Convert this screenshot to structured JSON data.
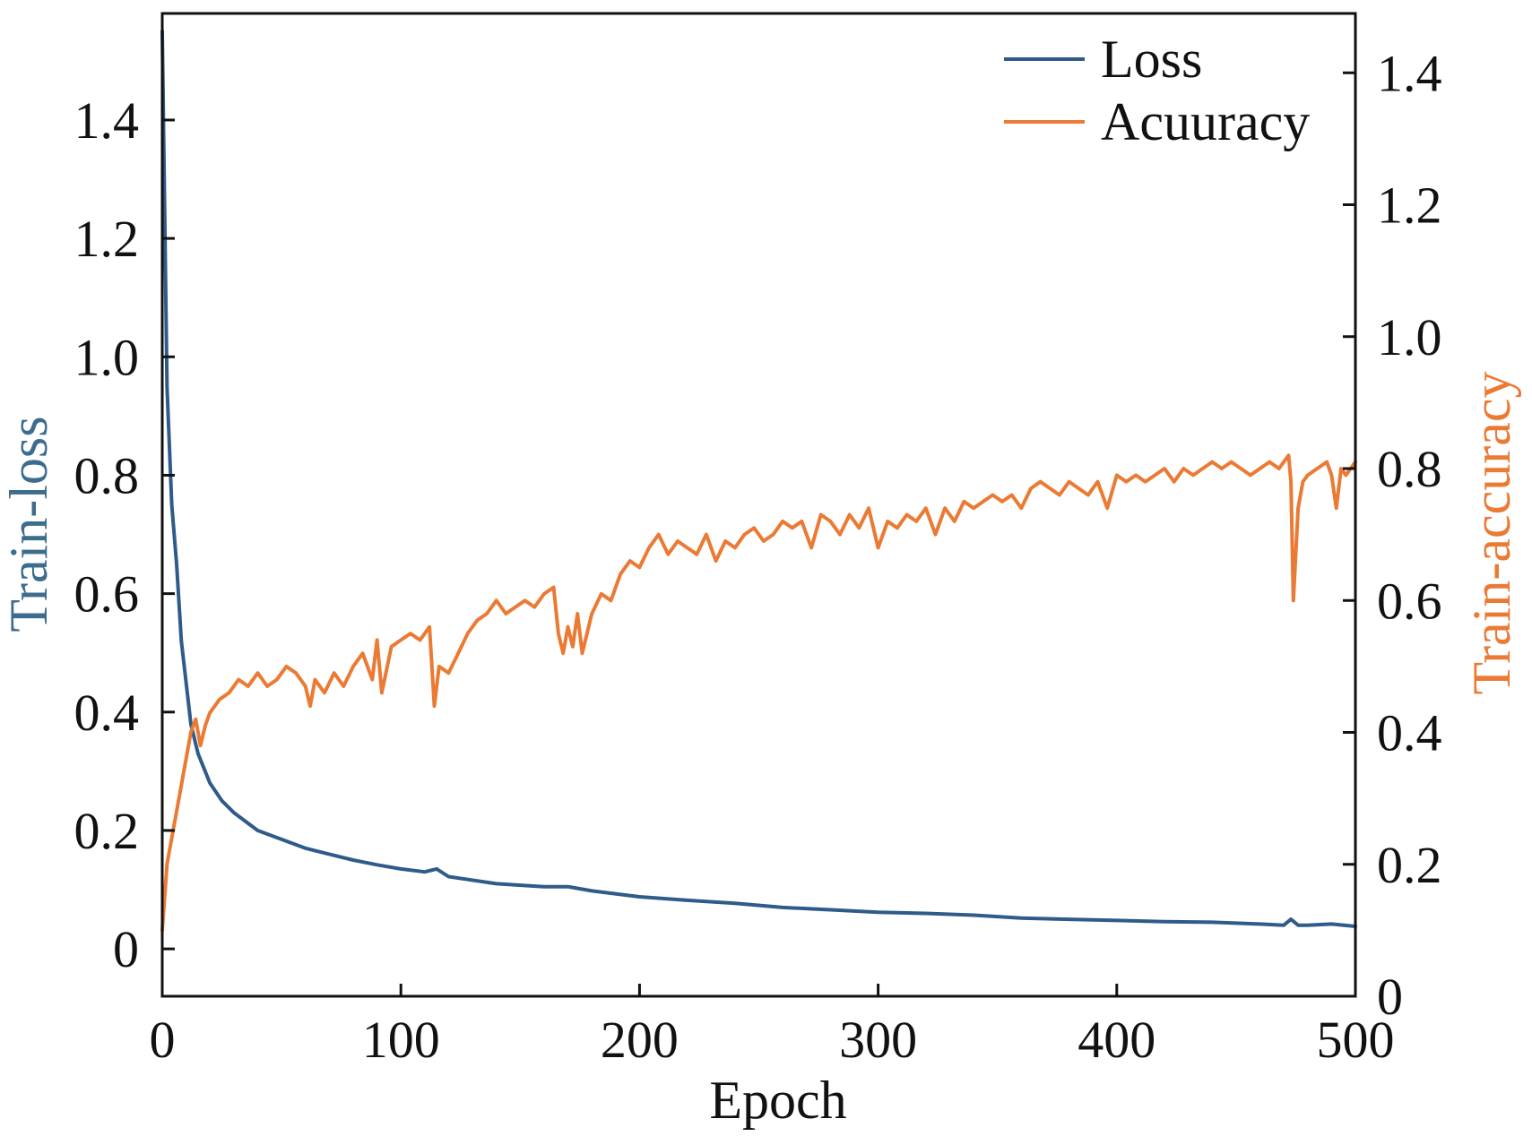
{
  "chart_data": {
    "type": "line",
    "title": "",
    "xlabel": "Epoch",
    "ylabel": "Train-loss",
    "y2label": "Train-accuracy",
    "xlim": [
      0,
      500
    ],
    "ylim": [
      -0.08,
      1.58
    ],
    "y2lim": [
      0,
      1.49
    ],
    "x_ticks": [
      0,
      100,
      200,
      300,
      400,
      500
    ],
    "x_tick_labels": [
      "0",
      "100",
      "200",
      "300",
      "400",
      "500"
    ],
    "y_ticks": [
      0,
      0.2,
      0.4,
      0.6,
      0.8,
      1.0,
      1.2,
      1.4
    ],
    "y_tick_labels": [
      "0",
      "0.2",
      "0.4",
      "0.6",
      "0.8",
      "1.0",
      "1.2",
      "1.4"
    ],
    "y2_ticks": [
      0,
      0.2,
      0.4,
      0.6,
      0.8,
      1.0,
      1.2,
      1.4
    ],
    "y2_tick_labels": [
      "0",
      "0.2",
      "0.4",
      "0.6",
      "0.8",
      "1.0",
      "1.2",
      "1.4"
    ],
    "grid": false,
    "legend_position": "top-right",
    "series": [
      {
        "name": "Loss",
        "axis": "left",
        "color": "#2e5b8a",
        "x": [
          0,
          2,
          4,
          6,
          8,
          10,
          12,
          15,
          20,
          25,
          30,
          40,
          50,
          60,
          70,
          80,
          90,
          100,
          110,
          115,
          120,
          140,
          160,
          170,
          180,
          200,
          220,
          240,
          260,
          280,
          300,
          320,
          340,
          360,
          380,
          400,
          420,
          440,
          460,
          470,
          473,
          476,
          480,
          490,
          500
        ],
        "values": [
          1.55,
          0.95,
          0.75,
          0.65,
          0.52,
          0.45,
          0.38,
          0.33,
          0.28,
          0.25,
          0.23,
          0.2,
          0.185,
          0.17,
          0.16,
          0.15,
          0.142,
          0.135,
          0.13,
          0.135,
          0.122,
          0.11,
          0.105,
          0.105,
          0.098,
          0.088,
          0.082,
          0.077,
          0.07,
          0.066,
          0.062,
          0.06,
          0.057,
          0.052,
          0.05,
          0.048,
          0.046,
          0.045,
          0.042,
          0.04,
          0.05,
          0.04,
          0.04,
          0.042,
          0.038
        ]
      },
      {
        "name": "Acuuracy",
        "axis": "right",
        "color": "#ea7a34",
        "x": [
          0,
          2,
          4,
          6,
          8,
          10,
          12,
          14,
          16,
          18,
          20,
          24,
          28,
          32,
          36,
          40,
          44,
          48,
          52,
          56,
          60,
          62,
          64,
          68,
          72,
          76,
          80,
          84,
          88,
          90,
          92,
          96,
          100,
          104,
          108,
          112,
          114,
          116,
          120,
          124,
          128,
          132,
          136,
          140,
          144,
          148,
          152,
          156,
          160,
          164,
          166,
          168,
          170,
          172,
          174,
          176,
          180,
          184,
          188,
          192,
          196,
          200,
          204,
          208,
          212,
          216,
          220,
          224,
          228,
          232,
          236,
          240,
          244,
          248,
          252,
          256,
          260,
          264,
          268,
          272,
          276,
          280,
          284,
          288,
          292,
          296,
          300,
          304,
          308,
          312,
          316,
          320,
          324,
          328,
          332,
          336,
          340,
          344,
          348,
          352,
          356,
          360,
          364,
          368,
          372,
          376,
          380,
          384,
          388,
          392,
          396,
          400,
          404,
          408,
          412,
          416,
          420,
          424,
          428,
          432,
          436,
          440,
          444,
          448,
          452,
          456,
          460,
          464,
          468,
          470,
          472,
          473,
          474,
          476,
          478,
          480,
          484,
          488,
          490,
          492,
          494,
          496,
          500
        ],
        "values": [
          0.1,
          0.2,
          0.24,
          0.28,
          0.32,
          0.36,
          0.4,
          0.42,
          0.38,
          0.41,
          0.43,
          0.45,
          0.46,
          0.48,
          0.47,
          0.49,
          0.47,
          0.48,
          0.5,
          0.49,
          0.47,
          0.44,
          0.48,
          0.46,
          0.49,
          0.47,
          0.5,
          0.52,
          0.48,
          0.54,
          0.46,
          0.53,
          0.54,
          0.55,
          0.54,
          0.56,
          0.44,
          0.5,
          0.49,
          0.52,
          0.55,
          0.57,
          0.58,
          0.6,
          0.58,
          0.59,
          0.6,
          0.59,
          0.61,
          0.62,
          0.55,
          0.52,
          0.56,
          0.53,
          0.58,
          0.52,
          0.58,
          0.61,
          0.6,
          0.64,
          0.66,
          0.65,
          0.68,
          0.7,
          0.67,
          0.69,
          0.68,
          0.67,
          0.7,
          0.66,
          0.69,
          0.68,
          0.7,
          0.71,
          0.69,
          0.7,
          0.72,
          0.71,
          0.72,
          0.68,
          0.73,
          0.72,
          0.7,
          0.73,
          0.71,
          0.74,
          0.68,
          0.72,
          0.71,
          0.73,
          0.72,
          0.74,
          0.7,
          0.74,
          0.72,
          0.75,
          0.74,
          0.75,
          0.76,
          0.75,
          0.76,
          0.74,
          0.77,
          0.78,
          0.77,
          0.76,
          0.78,
          0.77,
          0.76,
          0.78,
          0.74,
          0.79,
          0.78,
          0.79,
          0.78,
          0.79,
          0.8,
          0.78,
          0.8,
          0.79,
          0.8,
          0.81,
          0.8,
          0.81,
          0.8,
          0.79,
          0.8,
          0.81,
          0.8,
          0.81,
          0.82,
          0.78,
          0.6,
          0.74,
          0.78,
          0.79,
          0.8,
          0.81,
          0.79,
          0.74,
          0.8,
          0.79,
          0.81
        ]
      }
    ]
  }
}
